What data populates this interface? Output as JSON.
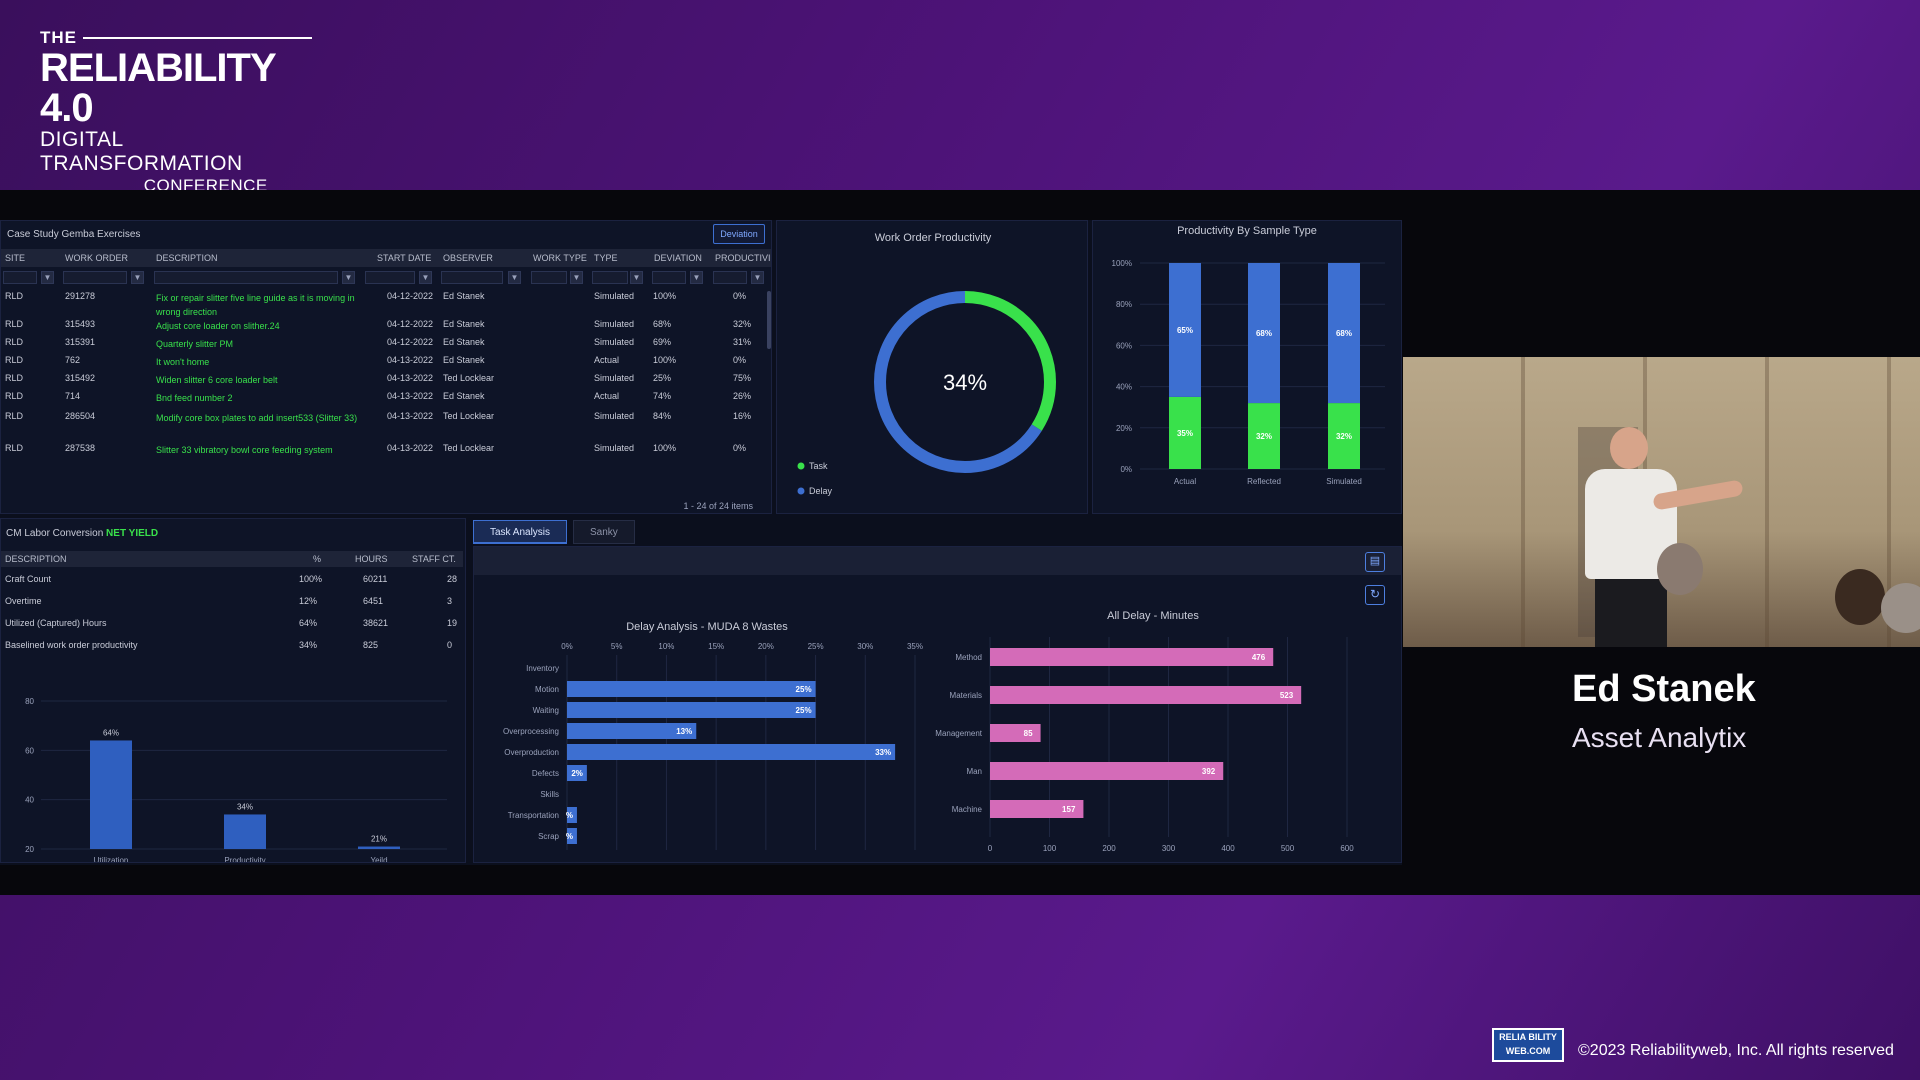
{
  "conference": {
    "the": "THE",
    "title": "RELIABILITY 4.0",
    "subtitle": "DIGITAL TRANSFORMATION",
    "region": "CONFERENCE WEST"
  },
  "case_study": {
    "title": "Case Study Gemba Exercises",
    "deviation_button": "Deviation",
    "columns": [
      "SITE",
      "WORK ORDER",
      "DESCRIPTION",
      "START DATE",
      "OBSERVER",
      "WORK TYPE",
      "TYPE",
      "DEVIATION",
      "PRODUCTIVI"
    ],
    "rows": [
      {
        "site": "RLD",
        "wo": "291278",
        "desc": "Fix or repair slitter five line guide as it is moving in wrong direction",
        "date": "04-12-2022",
        "observer": "Ed Stanek",
        "type": "Simulated",
        "dev": "100%",
        "prod": "0%"
      },
      {
        "site": "RLD",
        "wo": "315493",
        "desc": "Adjust core loader on slither.24",
        "date": "04-12-2022",
        "observer": "Ed Stanek",
        "type": "Simulated",
        "dev": "68%",
        "prod": "32%"
      },
      {
        "site": "RLD",
        "wo": "315391",
        "desc": "Quarterly slitter PM",
        "date": "04-12-2022",
        "observer": "Ed Stanek",
        "type": "Simulated",
        "dev": "69%",
        "prod": "31%"
      },
      {
        "site": "RLD",
        "wo": "762",
        "desc": "It won't home",
        "date": "04-13-2022",
        "observer": "Ed Stanek",
        "type": "Actual",
        "dev": "100%",
        "prod": "0%"
      },
      {
        "site": "RLD",
        "wo": "315492",
        "desc": "Widen slitter 6 core loader belt",
        "date": "04-13-2022",
        "observer": "Ted Locklear",
        "type": "Simulated",
        "dev": "25%",
        "prod": "75%"
      },
      {
        "site": "RLD",
        "wo": "714",
        "desc": "Bnd feed number 2",
        "date": "04-13-2022",
        "observer": "Ed Stanek",
        "type": "Actual",
        "dev": "74%",
        "prod": "26%"
      },
      {
        "site": "RLD",
        "wo": "286504",
        "desc": "Modify core box plates to add insert533 (Slitter 33)",
        "date": "04-13-2022",
        "observer": "Ted Locklear",
        "type": "Simulated",
        "dev": "84%",
        "prod": "16%"
      },
      {
        "site": "RLD",
        "wo": "287538",
        "desc": "Slitter 33 vibratory bowl core feeding system",
        "date": "04-13-2022",
        "observer": "Ted Locklear",
        "type": "Simulated",
        "dev": "100%",
        "prod": "0%"
      }
    ],
    "pager": "1 - 24 of 24 items"
  },
  "labor": {
    "title": "CM Labor Conversion",
    "title_tag": "NET YIELD",
    "columns": [
      "DESCRIPTION",
      "%",
      "HOURS",
      "STAFF CT."
    ],
    "rows": [
      {
        "desc": "Craft Count",
        "pct": "100%",
        "hours": "60211",
        "staff": "28"
      },
      {
        "desc": "Overtime",
        "pct": "12%",
        "hours": "6451",
        "staff": "3"
      },
      {
        "desc": "Utilized (Captured) Hours",
        "pct": "64%",
        "hours": "38621",
        "staff": "19"
      },
      {
        "desc": "Baselined work order productivity",
        "pct": "34%",
        "hours": "825",
        "staff": "0"
      }
    ]
  },
  "tabs": {
    "task_analysis": "Task Analysis",
    "sanky": "Sanky"
  },
  "speaker": {
    "name": "Ed Stanek",
    "org": "Asset Analytix"
  },
  "footer": {
    "logo_top": "RELIA BILITY",
    "logo_bottom": "WEB.COM",
    "copyright": "©2023 Reliabilityweb, Inc. All rights reserved"
  },
  "colors": {
    "blue": "#3d6fd1",
    "green": "#39e14b",
    "pink": "#d46bb8",
    "bar_blue": "#2f5fbf"
  },
  "chart_data": [
    {
      "type": "pie",
      "title": "Work Order Productivity",
      "center_label": "34%",
      "slices": [
        {
          "name": "Task",
          "value": 34,
          "color": "#39e14b"
        },
        {
          "name": "Delay",
          "value": 66,
          "color": "#3d6fd1"
        }
      ]
    },
    {
      "type": "bar",
      "title": "Productivity By Sample Type",
      "categories": [
        "Actual",
        "Reflected",
        "Simulated"
      ],
      "series": [
        {
          "name": "",
          "values": [
            35,
            32,
            32
          ],
          "labels": [
            "35%",
            "32%",
            "32%"
          ],
          "color": "#39e14b"
        },
        {
          "name": "",
          "values": [
            65,
            68,
            68
          ],
          "labels": [
            "65%",
            "68%",
            "68%"
          ],
          "color": "#3d6fd1"
        }
      ],
      "ylim": [
        0,
        100
      ],
      "yticks": [
        "0%",
        "20%",
        "40%",
        "60%",
        "80%",
        "100%"
      ],
      "stacked": true
    },
    {
      "type": "bar",
      "title": "",
      "categories": [
        "Utilization",
        "Productivity",
        "Yeild"
      ],
      "values": [
        64,
        34,
        21
      ],
      "labels": [
        "64%",
        "34%",
        "21%"
      ],
      "ylim": [
        20,
        80
      ],
      "yticks": [
        "20",
        "40",
        "60",
        "80"
      ]
    },
    {
      "type": "bar",
      "title": "Delay Analysis - MUDA 8 Wastes",
      "orientation": "horizontal",
      "categories": [
        "Inventory",
        "Motion",
        "Waiting",
        "Overprocessing",
        "Overproduction",
        "Defects",
        "Skills",
        "Transportation",
        "Scrap"
      ],
      "values": [
        0,
        25,
        25,
        13,
        33,
        2,
        0,
        1,
        1
      ],
      "labels": [
        "",
        "25%",
        "25%",
        "13%",
        "33%",
        "2%",
        "",
        "%",
        "%"
      ],
      "xlim": [
        0,
        35
      ],
      "xticks": [
        "0%",
        "5%",
        "10%",
        "15%",
        "20%",
        "25%",
        "30%",
        "35%"
      ]
    },
    {
      "type": "bar",
      "title": "All Delay - Minutes",
      "orientation": "horizontal",
      "categories": [
        "Method",
        "Materials",
        "Management",
        "Man",
        "Machine"
      ],
      "values": [
        476,
        523,
        85,
        392,
        157
      ],
      "labels": [
        "476",
        "523",
        "85",
        "392",
        "157"
      ],
      "xlim": [
        0,
        600
      ],
      "xticks": [
        "0",
        "100",
        "200",
        "300",
        "400",
        "500",
        "600"
      ]
    }
  ]
}
